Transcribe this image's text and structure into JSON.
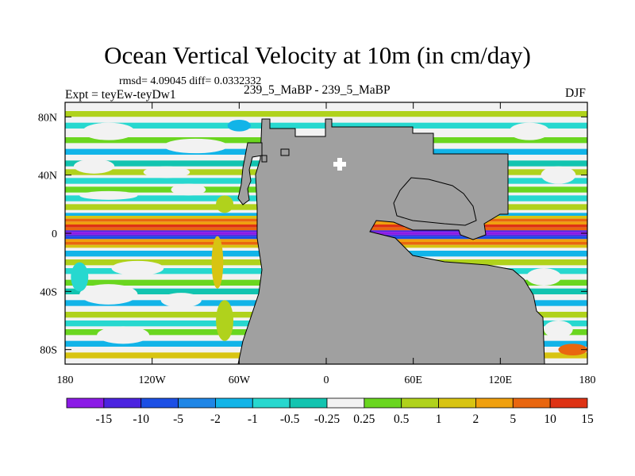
{
  "chart_data": {
    "type": "heatmap",
    "title": "Ocean Vertical Velocity at 10m (in cm/day)",
    "stats": "rmsd= 4.09045 diff= 0.0332332",
    "experiment": "Expt = teyEw-teyDw1",
    "case": "239_5_MaBP - 239_5_MaBP",
    "season": "DJF",
    "x_ticks": [
      "180",
      "120W",
      "60W",
      "0",
      "60E",
      "120E",
      "180"
    ],
    "y_ticks": [
      "80N",
      "40N",
      "0",
      "40S",
      "80S"
    ],
    "xlim": [
      -180,
      180
    ],
    "ylim": [
      -90,
      90
    ],
    "colorbar": {
      "labels": [
        "-15",
        "-10",
        "-5",
        "-2",
        "-1",
        "-0.5",
        "-0.25",
        "0.25",
        "0.5",
        "1",
        "2",
        "5",
        "10",
        "15"
      ],
      "colors": [
        "#8b1ae6",
        "#4b23e0",
        "#1c4fe5",
        "#1f86e6",
        "#12b4e8",
        "#27d8cf",
        "#12c4b0",
        "#f2f2f2",
        "#6ad61f",
        "#b0d21c",
        "#d8c412",
        "#f0a00e",
        "#e9660f",
        "#de3214"
      ]
    },
    "land_color": "#a0a0a0"
  }
}
